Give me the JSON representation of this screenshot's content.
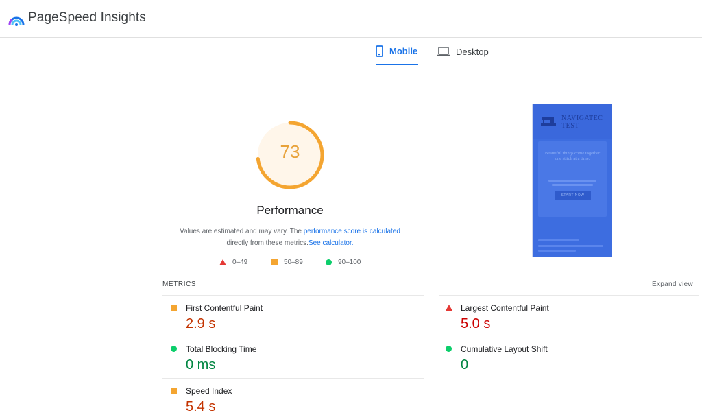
{
  "app": {
    "title": "PageSpeed Insights",
    "logo_icon": "pagespeed-logo-icon"
  },
  "tabs": [
    {
      "label": "Mobile",
      "icon": "smartphone-icon",
      "active": true
    },
    {
      "label": "Desktop",
      "icon": "laptop-icon",
      "active": false
    }
  ],
  "score": {
    "value": "73",
    "fraction": 0.73,
    "color": "#e8a23a",
    "title": "Performance"
  },
  "note": {
    "text_before": "Values are estimated and may vary. The ",
    "link1": "performance score is calculated",
    "text_middle": " directly from these metrics.",
    "link2": "See calculator."
  },
  "legend": [
    {
      "range": "0–49",
      "icon": "red-triangle-icon",
      "color": "#e53935"
    },
    {
      "range": "50–89",
      "icon": "orange-square-icon",
      "color": "#f4a531"
    },
    {
      "range": "90–100",
      "icon": "green-circle-icon",
      "color": "#0cce6b"
    }
  ],
  "preview": {
    "brand_line1": "NAVIGATEC",
    "brand_line2": "TEST",
    "hero_title": "Beautiful things come together one stitch at a time.",
    "button_label": "START NOW",
    "background_color": "#3d6de0"
  },
  "metrics": {
    "label": "METRICS",
    "expand": "Expand view",
    "items": [
      {
        "name": "First Contentful Paint",
        "value": "2.9 s",
        "rating": "average",
        "icon": "orange-square-icon"
      },
      {
        "name": "Largest Contentful Paint",
        "value": "5.0 s",
        "rating": "poor",
        "icon": "red-triangle-icon"
      },
      {
        "name": "Total Blocking Time",
        "value": "0 ms",
        "rating": "good",
        "icon": "green-circle-icon"
      },
      {
        "name": "Cumulative Layout Shift",
        "value": "0",
        "rating": "good",
        "icon": "green-circle-icon"
      },
      {
        "name": "Speed Index",
        "value": "5.4 s",
        "rating": "average",
        "icon": "orange-square-icon"
      }
    ]
  }
}
